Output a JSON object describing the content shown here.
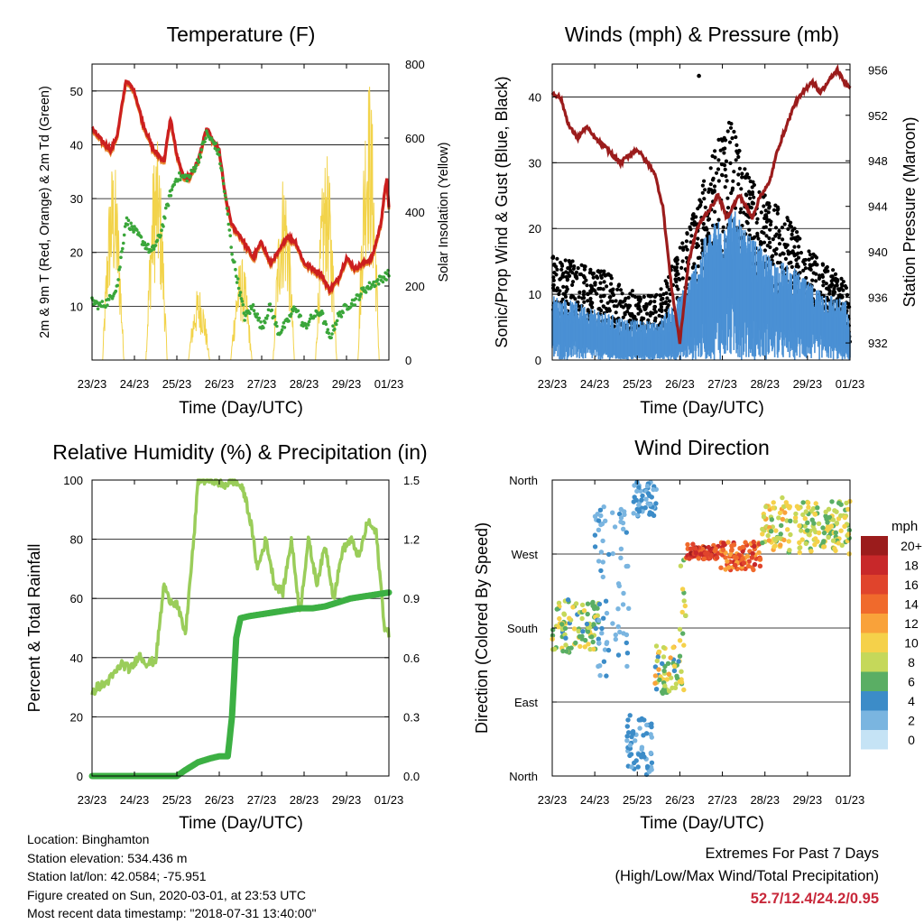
{
  "colors": {
    "temp_2m": "#cc1f1f",
    "temp_9m": "#e8862c",
    "dewpoint": "#3aa63a",
    "solar": "#f2d34a",
    "gust": "#000000",
    "wind": "#4a90d4",
    "pressure": "#9b1c1c",
    "rh": "#9acd5a",
    "precip": "#3cb043",
    "extremes": "#c8283a"
  },
  "chart_data": [
    {
      "type": "line",
      "title": "Temperature (F)",
      "xlabel": "Time (Day/UTC)",
      "ylabel": "2m & 9m T (Red, Orange) & 2m Td (Green)",
      "y2label": "Solar Insolation (Yellow)",
      "xticks": [
        "23/23",
        "24/23",
        "25/23",
        "26/23",
        "27/23",
        "28/23",
        "29/23",
        "01/23"
      ],
      "ylim": [
        0,
        55
      ],
      "yticks": [
        10,
        20,
        30,
        40,
        50
      ],
      "y2lim": [
        0,
        800
      ],
      "y2ticks": [
        0,
        200,
        400,
        600,
        800
      ],
      "grid": true,
      "series": [
        {
          "key": "temp",
          "x": [
            0,
            0.2,
            0.45,
            0.6,
            0.8,
            1.0,
            1.2,
            1.45,
            1.7,
            1.85,
            2.0,
            2.15,
            2.3,
            2.5,
            2.7,
            2.9,
            3.0,
            3.15,
            3.3,
            3.5,
            3.65,
            3.8,
            4.0,
            4.2,
            4.4,
            4.6,
            4.8,
            5.0,
            5.2,
            5.4,
            5.6,
            5.8,
            6.0,
            6.2,
            6.4,
            6.6,
            6.8,
            6.95,
            7.0
          ],
          "y": [
            43,
            41,
            39,
            42,
            52,
            50,
            44,
            39,
            37,
            45,
            38,
            34,
            34,
            37,
            43,
            40,
            39,
            30,
            25,
            23,
            21,
            19,
            22,
            18,
            20,
            23,
            22,
            18,
            17,
            16,
            13,
            15,
            19,
            17,
            18,
            19,
            25,
            34,
            28
          ]
        },
        {
          "key": "dew",
          "x": [
            0,
            0.2,
            0.4,
            0.6,
            0.8,
            1.0,
            1.2,
            1.4,
            1.6,
            1.85,
            2.0,
            2.15,
            2.3,
            2.5,
            2.7,
            2.9,
            3.0,
            3.15,
            3.3,
            3.45,
            3.6,
            3.8,
            4.0,
            4.2,
            4.4,
            4.6,
            4.8,
            5.0,
            5.2,
            5.4,
            5.6,
            5.8,
            6.0,
            6.2,
            6.4,
            6.6,
            6.8,
            7.0
          ],
          "y": [
            11,
            10,
            11,
            14,
            26,
            24,
            22,
            20,
            23,
            31,
            34,
            34,
            34,
            37,
            42,
            40,
            38,
            30,
            20,
            14,
            8,
            10,
            6,
            10,
            5,
            7,
            10,
            6,
            8,
            9,
            4,
            8,
            10,
            11,
            13,
            14,
            15,
            16
          ]
        },
        {
          "key": "solar",
          "peaks": [
            0.5,
            1.52,
            2.52,
            3.52,
            4.52,
            5.52,
            6.52
          ],
          "heights": [
            550,
            600,
            200,
            280,
            520,
            560,
            780
          ]
        }
      ]
    },
    {
      "type": "scatter",
      "title": "Winds (mph) & Pressure (mb)",
      "xlabel": "Time (Day/UTC)",
      "ylabel": "Sonic/Prop Wind & Gust (Blue, Black)",
      "y2label": "Station Pressure (Maroon)",
      "xticks": [
        "23/23",
        "24/23",
        "25/23",
        "26/23",
        "27/23",
        "28/23",
        "29/23",
        "01/23"
      ],
      "ylim": [
        0,
        45
      ],
      "yticks": [
        0,
        10,
        20,
        30,
        40
      ],
      "y2lim": [
        930.5,
        956.5
      ],
      "y2ticks": [
        932,
        936,
        940,
        944,
        948,
        952,
        956
      ],
      "grid": true,
      "series": [
        {
          "key": "pressure",
          "x": [
            0,
            0.2,
            0.4,
            0.6,
            0.8,
            1.0,
            1.3,
            1.6,
            1.8,
            2.0,
            2.2,
            2.4,
            2.6,
            2.8,
            3.0,
            3.2,
            3.4,
            3.55,
            3.75,
            3.9,
            4.1,
            4.4,
            4.7,
            4.9,
            5.1,
            5.3,
            5.5,
            5.7,
            5.9,
            6.1,
            6.3,
            6.5,
            6.7,
            6.85,
            7.0
          ],
          "y": [
            954,
            953.5,
            951,
            950,
            951,
            950,
            949,
            947.8,
            948.5,
            949,
            948,
            947,
            944,
            937,
            932,
            939,
            942,
            943,
            944,
            945,
            943,
            945,
            943,
            945,
            946,
            949,
            951,
            953,
            954,
            955,
            954,
            955,
            956,
            955,
            954.5
          ]
        },
        {
          "key": "gust_env",
          "x": [
            0,
            0.5,
            1,
            1.5,
            2,
            2.5,
            3,
            3.3,
            3.6,
            3.9,
            4.2,
            4.5,
            4.8,
            5.1,
            5.4,
            5.7,
            6.0,
            6.3,
            6.6,
            6.9,
            7.0
          ],
          "hi": [
            16,
            15,
            14,
            13,
            10,
            10,
            17,
            22,
            28,
            34,
            37,
            30,
            27,
            25,
            23,
            20,
            17,
            15,
            14,
            12,
            8
          ],
          "lo": [
            5,
            4,
            3,
            3,
            3,
            3,
            5,
            9,
            12,
            14,
            16,
            14,
            12,
            10,
            9,
            8,
            7,
            6,
            5,
            4,
            2
          ]
        },
        {
          "key": "wind_env",
          "x": [
            0,
            0.5,
            1,
            1.5,
            2,
            2.5,
            3,
            3.3,
            3.6,
            3.9,
            4.2,
            4.5,
            4.8,
            5.1,
            5.4,
            5.7,
            6.0,
            6.3,
            6.6,
            6.9,
            7.0
          ],
          "hi": [
            10,
            9,
            8,
            7,
            6,
            6,
            10,
            14,
            19,
            22,
            24,
            20,
            18,
            16,
            15,
            14,
            12,
            11,
            10,
            9,
            5
          ],
          "lo": [
            3,
            3,
            2,
            1,
            1,
            1,
            2,
            4,
            6,
            8,
            10,
            8,
            7,
            6,
            5,
            5,
            4,
            4,
            3,
            2,
            1
          ]
        }
      ]
    },
    {
      "type": "line",
      "title": "Relative Humidity (%) & Precipitation (in)",
      "xlabel": "Time (Day/UTC)",
      "ylabel": "Percent & Total Rainfall",
      "xticks": [
        "23/23",
        "24/23",
        "25/23",
        "26/23",
        "27/23",
        "28/23",
        "29/23",
        "01/23"
      ],
      "ylim": [
        0,
        100
      ],
      "yticks": [
        0,
        20,
        40,
        60,
        80,
        100
      ],
      "y2lim": [
        0,
        1.5
      ],
      "y2ticks": [
        "0.0",
        "0.3",
        "0.6",
        "0.9",
        "1.2",
        "1.5"
      ],
      "grid": true,
      "series": [
        {
          "key": "rh",
          "x": [
            0,
            0.1,
            0.3,
            0.5,
            0.7,
            0.9,
            1.0,
            1.1,
            1.3,
            1.5,
            1.7,
            1.8,
            2.0,
            2.2,
            2.4,
            2.5,
            2.7,
            2.9,
            3.1,
            3.3,
            3.5,
            3.6,
            3.75,
            3.9,
            4.1,
            4.3,
            4.5,
            4.7,
            4.9,
            5.1,
            5.3,
            5.5,
            5.7,
            5.9,
            6.1,
            6.3,
            6.5,
            6.7,
            6.9,
            7.0
          ],
          "y": [
            27,
            30,
            31,
            34,
            38,
            36,
            38,
            41,
            38,
            39,
            65,
            60,
            58,
            48,
            80,
            100,
            100,
            100,
            98,
            100,
            98,
            95,
            85,
            70,
            80,
            65,
            62,
            80,
            55,
            80,
            65,
            78,
            60,
            76,
            80,
            74,
            86,
            82,
            50,
            48
          ]
        },
        {
          "key": "precip",
          "x": [
            0,
            1.0,
            2.0,
            2.2,
            2.5,
            2.8,
            3.0,
            3.2,
            3.3,
            3.4,
            3.5,
            3.7,
            4.0,
            4.3,
            4.6,
            4.9,
            5.2,
            5.5,
            5.8,
            6.1,
            6.4,
            6.7,
            7.0
          ],
          "y": [
            0,
            0,
            0,
            0.03,
            0.07,
            0.09,
            0.1,
            0.1,
            0.3,
            0.7,
            0.8,
            0.81,
            0.82,
            0.83,
            0.84,
            0.85,
            0.85,
            0.86,
            0.88,
            0.9,
            0.91,
            0.92,
            0.93
          ]
        }
      ]
    },
    {
      "type": "scatter",
      "title": "Wind Direction",
      "xlabel": "Time (Day/UTC)",
      "ylabel": "Direction (Colored By Speed)",
      "xticks": [
        "23/23",
        "24/23",
        "25/23",
        "26/23",
        "27/23",
        "28/23",
        "29/23",
        "01/23"
      ],
      "yticks": [
        "North",
        "West",
        "South",
        "East",
        "North"
      ],
      "ylim": [
        0,
        360
      ],
      "grid": true,
      "legend": {
        "title": "mph",
        "labels": [
          "20+",
          "18",
          "16",
          "14",
          "12",
          "10",
          "8",
          "6",
          "4",
          "2",
          "0"
        ],
        "colors": [
          "#9b1c1c",
          "#c8282a",
          "#e0442c",
          "#f06a2c",
          "#f9a23a",
          "#f5d14a",
          "#c5d85a",
          "#5aae64",
          "#3c8cc8",
          "#7ab5e0",
          "#c5e3f5"
        ],
        "placement": "right"
      },
      "clusters": [
        {
          "x0": 0.0,
          "x1": 1.1,
          "ymin": 150,
          "ymax": 215,
          "speeds": [
            4,
            10
          ]
        },
        {
          "x0": 1.0,
          "x1": 1.8,
          "ymin": 120,
          "ymax": 330,
          "speeds": [
            1,
            4
          ]
        },
        {
          "x0": 1.75,
          "x1": 2.35,
          "ymin": 0,
          "ymax": 75,
          "speeds": [
            2,
            5
          ]
        },
        {
          "x0": 1.9,
          "x1": 2.45,
          "ymin": 315,
          "ymax": 358,
          "speeds": [
            2,
            4
          ]
        },
        {
          "x0": 2.4,
          "x1": 3.1,
          "ymin": 100,
          "ymax": 160,
          "speeds": [
            4,
            13
          ]
        },
        {
          "x0": 3.0,
          "x1": 3.15,
          "ymin": 150,
          "ymax": 270,
          "speeds": [
            6,
            11
          ]
        },
        {
          "x0": 3.15,
          "x1": 3.95,
          "ymin": 264,
          "ymax": 282,
          "speeds": [
            14,
            20
          ]
        },
        {
          "x0": 3.95,
          "x1": 4.9,
          "ymin": 250,
          "ymax": 285,
          "speeds": [
            11,
            18
          ]
        },
        {
          "x0": 4.9,
          "x1": 5.5,
          "ymin": 275,
          "ymax": 340,
          "speeds": [
            6,
            12
          ]
        },
        {
          "x0": 5.5,
          "x1": 7.0,
          "ymin": 270,
          "ymax": 335,
          "speeds": [
            5,
            11
          ]
        }
      ]
    }
  ],
  "info": {
    "location": "Location: Binghamton",
    "elevation": "Station elevation: 534.436 m",
    "latlon": "Station lat/lon: 42.0584; -75.951",
    "created": "Figure created on Sun, 2020-03-01, at 23:53 UTC",
    "timestamp": "Most recent data timestamp: \"2018-07-31 13:40:00\""
  },
  "extremes": {
    "title": "Extremes For Past 7 Days",
    "subtitle": "(High/Low/Max Wind/Total Precipitation)",
    "values": "52.7/12.4/24.2/0.95"
  }
}
